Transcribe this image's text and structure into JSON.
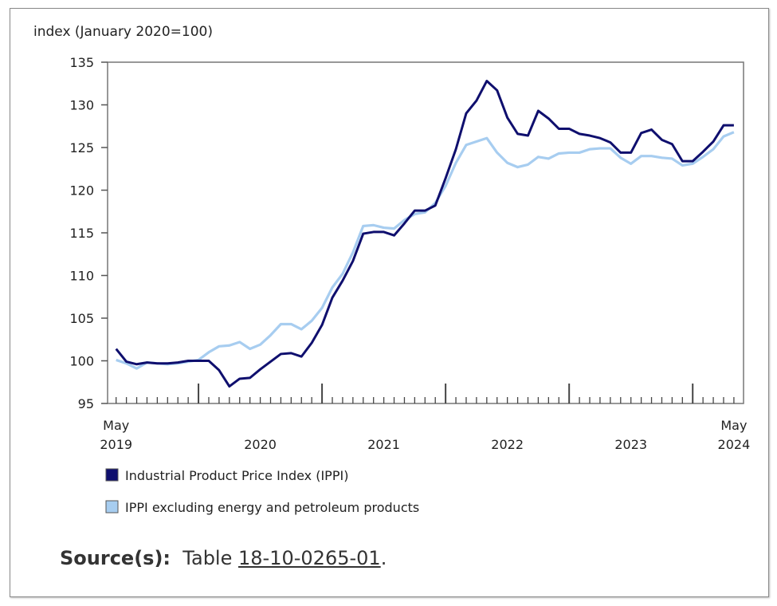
{
  "chart_data": {
    "type": "line",
    "ylabel": "index (January 2020=100)",
    "ylim": [
      95,
      135
    ],
    "yticks": [
      95,
      100,
      105,
      110,
      115,
      120,
      125,
      130,
      135
    ],
    "x_start": "May 2019",
    "x_end": "May 2024",
    "xtick_labels": [
      {
        "month": "May",
        "year": "2019"
      },
      {
        "month": "",
        "year": "2020"
      },
      {
        "month": "",
        "year": "2021"
      },
      {
        "month": "",
        "year": "2022"
      },
      {
        "month": "",
        "year": "2023"
      },
      {
        "month": "May",
        "year": "2024"
      }
    ],
    "grid": false,
    "legend": "bottom",
    "series": [
      {
        "name": "Industrial Product Price Index (IPPI)",
        "color": "#0f0f6e",
        "values": [
          101.4,
          99.9,
          99.6,
          99.8,
          99.7,
          99.7,
          99.8,
          100.0,
          100.0,
          100.0,
          98.9,
          97.0,
          97.9,
          98.0,
          99.0,
          99.9,
          100.8,
          100.9,
          100.5,
          102.1,
          104.2,
          107.4,
          109.4,
          111.7,
          114.9,
          115.1,
          115.1,
          114.7,
          116.1,
          117.6,
          117.6,
          118.2,
          121.4,
          124.8,
          129.0,
          130.5,
          132.8,
          131.7,
          128.5,
          126.6,
          126.4,
          129.3,
          128.4,
          127.2,
          127.2,
          126.6,
          126.4,
          126.1,
          125.6,
          124.4,
          124.4,
          126.7,
          127.1,
          125.9,
          125.4,
          123.4,
          123.4,
          124.5,
          125.7,
          127.6,
          127.6
        ]
      },
      {
        "name": "IPPI excluding energy and petroleum products",
        "color": "#a7cdf0",
        "values": [
          100.1,
          99.7,
          99.1,
          99.8,
          99.7,
          99.6,
          99.7,
          99.9,
          100.1,
          101.0,
          101.7,
          101.8,
          102.2,
          101.4,
          101.9,
          103.0,
          104.3,
          104.3,
          103.7,
          104.7,
          106.2,
          108.6,
          110.2,
          112.7,
          115.8,
          115.9,
          115.6,
          115.5,
          116.5,
          117.2,
          117.4,
          118.5,
          120.5,
          123.2,
          125.3,
          125.7,
          126.1,
          124.4,
          123.2,
          122.7,
          123.0,
          123.9,
          123.7,
          124.3,
          124.4,
          124.4,
          124.8,
          124.9,
          124.9,
          123.8,
          123.1,
          124.0,
          124.0,
          123.8,
          123.7,
          122.9,
          123.1,
          123.9,
          124.8,
          126.3,
          126.8
        ]
      }
    ]
  },
  "source": {
    "label": "Source(s):",
    "prefix": "Table ",
    "link": "18-10-0265-01",
    "suffix": "."
  }
}
